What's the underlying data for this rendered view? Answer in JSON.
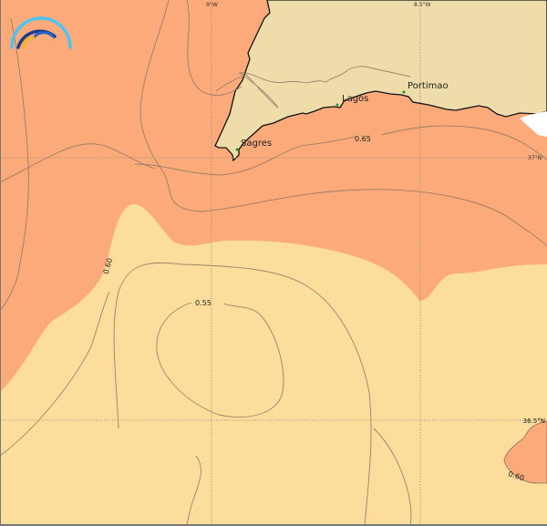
{
  "map": {
    "colors": {
      "band_high": "#FCAA7A",
      "band_low": "#FDDD9B",
      "land": "#EEDCAB",
      "coastline": "#111111",
      "city_dot": "#1a9a1a"
    },
    "grid_labels": {
      "lon": [
        "9°W",
        "8.5°W"
      ],
      "lat": [
        "37°N",
        "36.5°N"
      ]
    },
    "cities": [
      {
        "name": "Sagres"
      },
      {
        "name": "Lagos"
      },
      {
        "name": "Portimao"
      }
    ],
    "contour_labels": [
      "0.65",
      "0.60",
      "0.55",
      "0.60"
    ],
    "logo_icon": "rainbow-arcs-logo"
  }
}
